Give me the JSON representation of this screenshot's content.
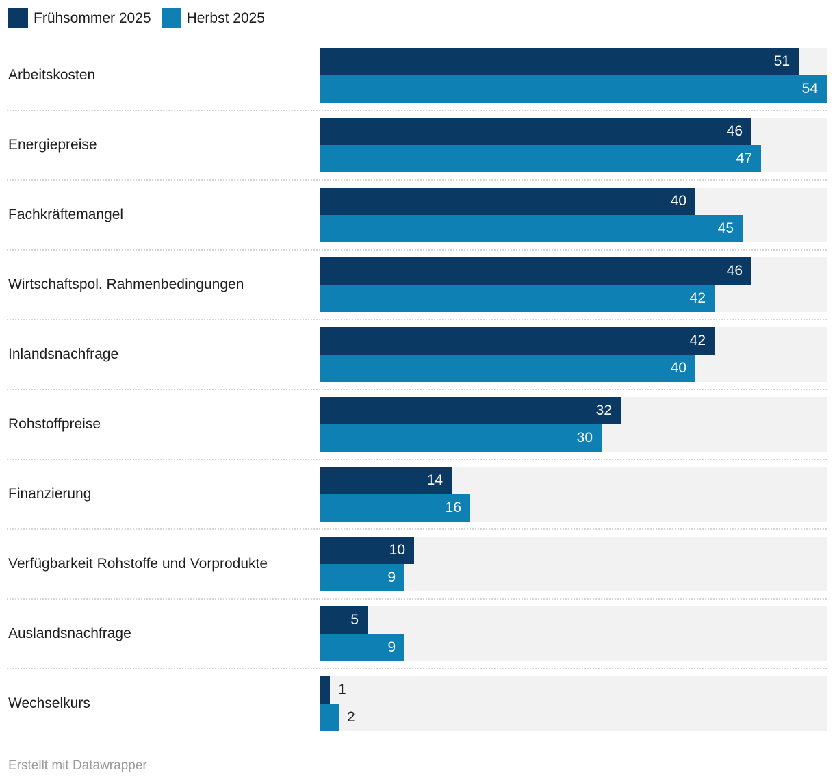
{
  "chart_data": {
    "type": "bar",
    "orientation": "horizontal",
    "title": "",
    "categories": [
      "Arbeitskosten",
      "Energiepreise",
      "Fachkräftemangel",
      "Wirtschaftspol. Rahmenbedingungen",
      "Inlandsnachfrage",
      "Rohstoffpreise",
      "Finanzierung",
      "Verfügbarkeit Rohstoffe und Vorprodukte",
      "Auslandsnachfrage",
      "Wechselkurs"
    ],
    "series": [
      {
        "name": "Frühsommer 2025",
        "color": "#0a3963",
        "values": [
          51,
          46,
          40,
          46,
          42,
          32,
          14,
          10,
          5,
          1
        ]
      },
      {
        "name": "Herbst 2025",
        "color": "#0e80b3",
        "values": [
          54,
          47,
          45,
          42,
          40,
          30,
          16,
          9,
          9,
          2
        ]
      }
    ],
    "xlim": [
      0,
      54
    ],
    "value_labels": true,
    "grid": false,
    "legend_position": "top-left",
    "track_color": "#f2f2f2"
  },
  "footer": {
    "text": "Erstellt mit Datawrapper"
  }
}
